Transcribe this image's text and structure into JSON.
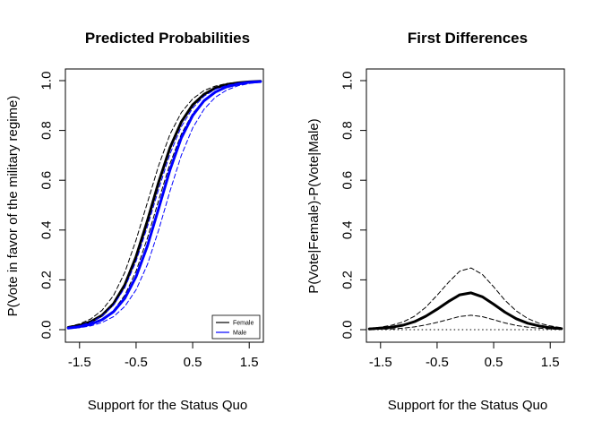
{
  "chart_data": [
    {
      "type": "line",
      "title": "Predicted Probabilities",
      "xlabel": "Support for the Status Quo",
      "ylabel": "P(Vote in favor of the military regime)",
      "xlim": [
        -1.75,
        1.75
      ],
      "ylim": [
        0,
        1
      ],
      "xticks": [
        "-1.5",
        "-0.5",
        "0.5",
        "1.5"
      ],
      "xtick_values": [
        -1.5,
        -0.5,
        0.5,
        1.5
      ],
      "yticks": [
        "0.0",
        "0.2",
        "0.4",
        "0.6",
        "0.8",
        "1.0"
      ],
      "ytick_values": [
        0,
        0.2,
        0.4,
        0.6,
        0.8,
        1.0
      ],
      "legend": {
        "position": "bottom-right",
        "entries": [
          {
            "label": "Female",
            "color": "#000000"
          },
          {
            "label": "Male",
            "color": "#0000ff"
          }
        ]
      },
      "x": [
        -1.7,
        -1.5,
        -1.3,
        -1.1,
        -0.9,
        -0.7,
        -0.5,
        -0.3,
        -0.1,
        0.1,
        0.3,
        0.5,
        0.7,
        0.9,
        1.1,
        1.3,
        1.5,
        1.7
      ],
      "series": [
        {
          "name": "Female",
          "color": "#000000",
          "style": "solid",
          "width": 3,
          "values": [
            0.009,
            0.017,
            0.032,
            0.058,
            0.104,
            0.18,
            0.293,
            0.438,
            0.593,
            0.731,
            0.834,
            0.903,
            0.945,
            0.97,
            0.984,
            0.991,
            0.995,
            0.997
          ]
        },
        {
          "name": "Female upper CI",
          "color": "#000000",
          "style": "dashed",
          "width": 1,
          "values": [
            0.012,
            0.023,
            0.043,
            0.078,
            0.137,
            0.23,
            0.36,
            0.511,
            0.66,
            0.785,
            0.872,
            0.927,
            0.96,
            0.978,
            0.988,
            0.994,
            0.997,
            0.998
          ]
        },
        {
          "name": "Female lower CI",
          "color": "#000000",
          "style": "dashed",
          "width": 1,
          "values": [
            0.006,
            0.011,
            0.022,
            0.041,
            0.077,
            0.138,
            0.235,
            0.368,
            0.521,
            0.667,
            0.785,
            0.868,
            0.922,
            0.956,
            0.975,
            0.986,
            0.992,
            0.996
          ]
        },
        {
          "name": "Male",
          "color": "#0000ff",
          "style": "solid",
          "width": 3,
          "values": [
            0.006,
            0.012,
            0.022,
            0.04,
            0.072,
            0.126,
            0.213,
            0.337,
            0.488,
            0.642,
            0.77,
            0.86,
            0.919,
            0.954,
            0.975,
            0.986,
            0.993,
            0.996
          ]
        },
        {
          "name": "Male upper CI",
          "color": "#0000ff",
          "style": "dashed",
          "width": 1,
          "values": [
            0.009,
            0.016,
            0.03,
            0.055,
            0.098,
            0.168,
            0.275,
            0.414,
            0.565,
            0.706,
            0.815,
            0.89,
            0.937,
            0.965,
            0.981,
            0.99,
            0.995,
            0.997
          ]
        },
        {
          "name": "Male lower CI",
          "color": "#0000ff",
          "style": "dashed",
          "width": 1,
          "values": [
            0.004,
            0.008,
            0.015,
            0.029,
            0.052,
            0.093,
            0.16,
            0.262,
            0.401,
            0.557,
            0.7,
            0.81,
            0.885,
            0.933,
            0.962,
            0.979,
            0.988,
            0.994
          ]
        }
      ]
    },
    {
      "type": "line",
      "title": "First Differences",
      "xlabel": "Support for the Status Quo",
      "ylabel": "P(Vote|Female)-P(Vote|Male)",
      "xlim": [
        -1.75,
        1.75
      ],
      "ylim": [
        0,
        1
      ],
      "xticks": [
        "-1.5",
        "-0.5",
        "0.5",
        "1.5"
      ],
      "xtick_values": [
        -1.5,
        -0.5,
        0.5,
        1.5
      ],
      "yticks": [
        "0.0",
        "0.2",
        "0.4",
        "0.6",
        "0.8",
        "1.0"
      ],
      "ytick_values": [
        0,
        0.2,
        0.4,
        0.6,
        0.8,
        1.0
      ],
      "reference_line": {
        "y": 0,
        "style": "dotted"
      },
      "x": [
        -1.7,
        -1.5,
        -1.3,
        -1.1,
        -0.9,
        -0.7,
        -0.5,
        -0.3,
        -0.1,
        0.1,
        0.3,
        0.5,
        0.7,
        0.9,
        1.1,
        1.3,
        1.5,
        1.7
      ],
      "series": [
        {
          "name": "First difference",
          "color": "#000000",
          "style": "solid",
          "width": 3,
          "values": [
            0.003,
            0.006,
            0.01,
            0.018,
            0.032,
            0.054,
            0.082,
            0.113,
            0.14,
            0.148,
            0.132,
            0.102,
            0.07,
            0.044,
            0.026,
            0.015,
            0.008,
            0.004
          ]
        },
        {
          "name": "Upper CI",
          "color": "#000000",
          "style": "dashed",
          "width": 1,
          "values": [
            0.006,
            0.01,
            0.018,
            0.031,
            0.054,
            0.09,
            0.138,
            0.19,
            0.235,
            0.248,
            0.222,
            0.172,
            0.118,
            0.075,
            0.045,
            0.026,
            0.015,
            0.008
          ]
        },
        {
          "name": "Lower CI",
          "color": "#000000",
          "style": "dashed",
          "width": 1,
          "values": [
            0.001,
            0.002,
            0.003,
            0.006,
            0.011,
            0.019,
            0.029,
            0.041,
            0.053,
            0.058,
            0.052,
            0.04,
            0.027,
            0.017,
            0.01,
            0.006,
            0.003,
            0.001
          ]
        }
      ]
    }
  ]
}
